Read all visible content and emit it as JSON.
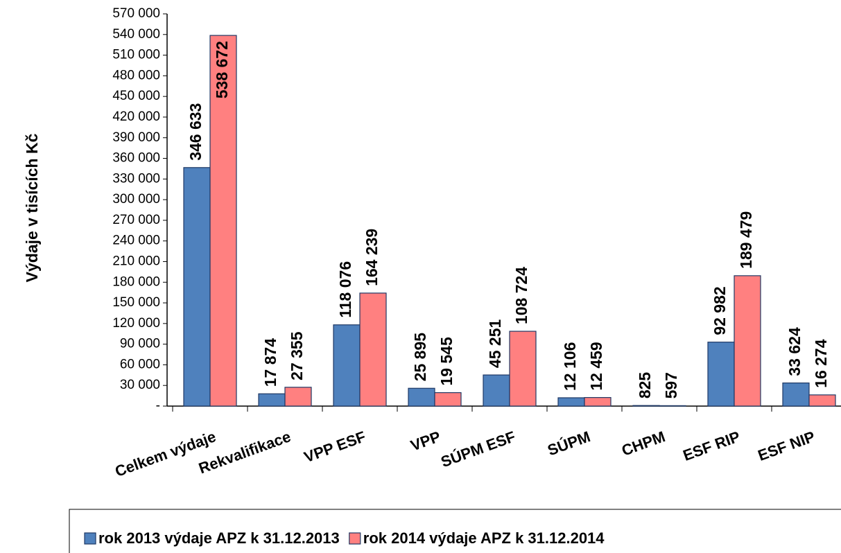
{
  "chart_data": {
    "type": "bar",
    "y_label": "Výdaje v tisících Kč",
    "categories": [
      "Celkem výdaje",
      "Rekvalifikace",
      "VPP ESF",
      "VPP",
      "SÚPM ESF",
      "SÚPM",
      "CHPM",
      "ESF RIP",
      "ESF NIP"
    ],
    "series": [
      {
        "name": "rok 2013 výdaje APZ k 31.12.2013",
        "color": "#4f81bd",
        "values": [
          346633,
          17874,
          118076,
          25895,
          45251,
          12106,
          825,
          92982,
          33624
        ],
        "value_labels": [
          "346 633",
          "17 874",
          "118 076",
          "25 895",
          "45 251",
          "12 106",
          "825",
          "92 982",
          "33 624"
        ]
      },
      {
        "name": "rok 2014 výdaje APZ k 31.12.2014",
        "color": "#ff8080",
        "values": [
          538672,
          27355,
          164239,
          19545,
          108724,
          12459,
          597,
          189479,
          16274
        ],
        "value_labels": [
          "538 672",
          "27 355",
          "164 239",
          "19 545",
          "108 724",
          "12 459",
          "597",
          "189 479",
          "16 274"
        ]
      }
    ],
    "ylim": [
      0,
      570000
    ],
    "yticks": [
      {
        "value": 0,
        "label": "-"
      },
      {
        "value": 30000,
        "label": "30 000"
      },
      {
        "value": 60000,
        "label": "60 000"
      },
      {
        "value": 90000,
        "label": "90 000"
      },
      {
        "value": 120000,
        "label": "120 000"
      },
      {
        "value": 150000,
        "label": "150 000"
      },
      {
        "value": 180000,
        "label": "180 000"
      },
      {
        "value": 210000,
        "label": "210 000"
      },
      {
        "value": 240000,
        "label": "240 000"
      },
      {
        "value": 270000,
        "label": "270 000"
      },
      {
        "value": 300000,
        "label": "300 000"
      },
      {
        "value": 330000,
        "label": "330 000"
      },
      {
        "value": 360000,
        "label": "360 000"
      },
      {
        "value": 390000,
        "label": "390 000"
      },
      {
        "value": 420000,
        "label": "420 000"
      },
      {
        "value": 450000,
        "label": "450 000"
      },
      {
        "value": 480000,
        "label": "480 000"
      },
      {
        "value": 510000,
        "label": "510 000"
      },
      {
        "value": 540000,
        "label": "540 000"
      },
      {
        "value": 570000,
        "label": "570 000"
      }
    ],
    "grid": false,
    "legend": "bottom"
  }
}
